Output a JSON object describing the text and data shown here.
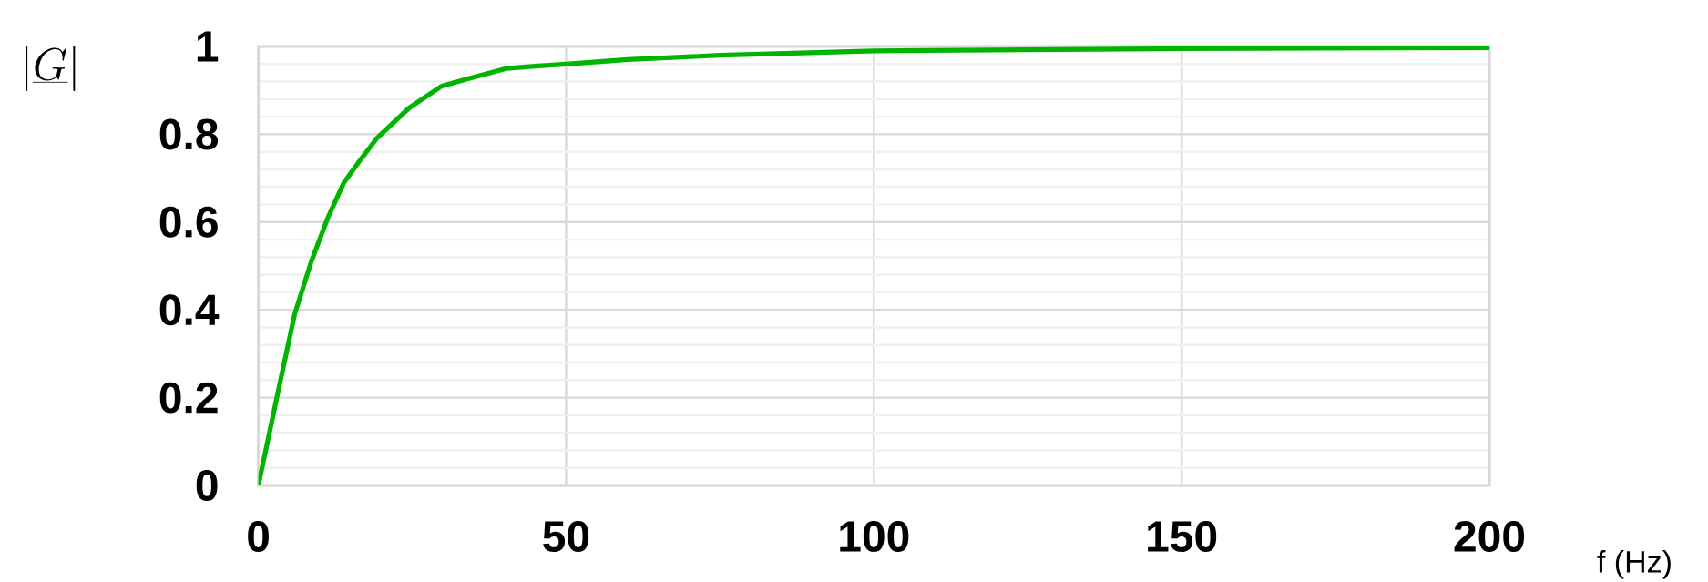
{
  "chart_data": {
    "type": "line",
    "xlabel": "f (Hz)",
    "ylabel": "\\left|\\underline{G}\\right|",
    "x": [
      0,
      3.3,
      5.9,
      8.6,
      11.3,
      13.9,
      16.5,
      19.2,
      24.5,
      29.8,
      35,
      40.4,
      45,
      50,
      60,
      75,
      100,
      150,
      200
    ],
    "series": [
      {
        "color": "#00b400",
        "values": [
          0,
          0.22,
          0.39,
          0.51,
          0.61,
          0.69,
          0.74,
          0.79,
          0.86,
          0.91,
          0.93,
          0.95,
          0.955,
          0.96,
          0.97,
          0.98,
          0.99,
          0.995,
          0.997
        ]
      }
    ],
    "xlim": [
      0,
      200
    ],
    "ylim": [
      0,
      1
    ],
    "xticks": [
      0,
      50,
      100,
      150,
      200
    ],
    "yticks": [
      0,
      0.2,
      0.4,
      0.6,
      0.8,
      1
    ],
    "grid": true,
    "marker": "none",
    "line_style": "solid"
  }
}
